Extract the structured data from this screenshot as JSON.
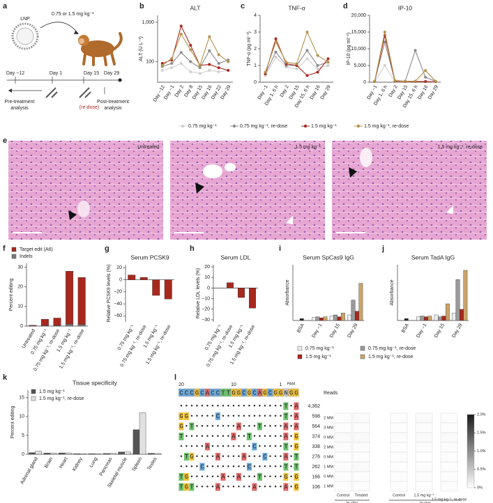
{
  "panel_labels": [
    "a",
    "b",
    "c",
    "d",
    "e",
    "f",
    "g",
    "h",
    "i",
    "j",
    "k",
    "l"
  ],
  "schematic": {
    "carrier": "LNP",
    "dose": "0.75 or 1.5 mg kg⁻¹",
    "timeline": [
      "Day −12",
      "Day 1",
      "Day 15",
      "Day 29"
    ],
    "redose": "(re-dose)",
    "pre": [
      "Pre-treatment",
      "analysis"
    ],
    "post": [
      "Post-treatment",
      "analysis"
    ]
  },
  "histology": {
    "labels": [
      "Untreated",
      "1.5 mg kg⁻¹",
      "1.5 mg kg⁻¹, re-dose"
    ]
  },
  "chart_data": [
    {
      "type": "line",
      "title": "ALT",
      "ylabel": "ALT (U L⁻¹)",
      "log_y": true,
      "categories": [
        "Day −12",
        "Day −1",
        "Day 2",
        "Day 8",
        "Day 15",
        "Day 16",
        "Day 22",
        "Day 29"
      ],
      "ylim": [
        30,
        1500
      ],
      "yticks": [
        100,
        {
          "value": 1000,
          "label": "1,000"
        }
      ],
      "series": [
        {
          "name": "0.75 mg kg⁻¹",
          "color": "#cfcfcf",
          "values": [
            60,
            70,
            90,
            55,
            50,
            60,
            55,
            60
          ]
        },
        {
          "name": "0.75 mg kg⁻¹, re-dose",
          "color": "#8a8a8a",
          "values": [
            75,
            90,
            170,
            100,
            70,
            190,
            90,
            110
          ]
        },
        {
          "name": "1.5 mg kg⁻¹",
          "color": "#a8281e",
          "values": [
            90,
            110,
            800,
            260,
            80,
            85,
            70,
            60
          ]
        },
        {
          "name": "1.5 mg kg⁻¹, re-dose",
          "color": "#b5924c",
          "values": [
            80,
            120,
            500,
            200,
            80,
            430,
            150,
            100
          ]
        }
      ]
    },
    {
      "type": "line",
      "title": "TNF-α",
      "ylabel": "TNF-α (pg ml⁻¹)",
      "categories": [
        "Day −1",
        "Day 1, 6 h",
        "Day 2",
        "Day 15",
        "Day 15, 6 h",
        "Day 16",
        "Day 29"
      ],
      "ylim": [
        0,
        4
      ],
      "yticks": [
        0,
        1,
        2,
        3,
        4
      ],
      "series": [
        {
          "name": "0.75 mg kg⁻¹",
          "color": "#cfcfcf",
          "values": [
            0.4,
            1.5,
            0.9,
            0.8,
            1.4,
            0.8,
            1.0
          ]
        },
        {
          "name": "0.75 mg kg⁻¹, re-dose",
          "color": "#8a8a8a",
          "values": [
            0.5,
            1.8,
            1.0,
            1.0,
            1.9,
            1.0,
            1.2
          ]
        },
        {
          "name": "1.5 mg kg⁻¹",
          "color": "#a8281e",
          "values": [
            0.5,
            2.6,
            1.1,
            1.0,
            0.4,
            0.6,
            1.4
          ]
        },
        {
          "name": "1.5 mg kg⁻¹, re-dose",
          "color": "#b5924c",
          "values": [
            0.6,
            2.4,
            1.2,
            1.1,
            3.0,
            1.6,
            1.2
          ]
        }
      ]
    },
    {
      "type": "line",
      "title": "IP-10",
      "ylabel": "IP-10 (pg ml⁻¹)",
      "categories": [
        "Day −1",
        "Day 1, 6 h",
        "Day 2",
        "Day 15",
        "Day 15, 6 h",
        "Day 16",
        "Day 29"
      ],
      "ylim": [
        0,
        20000
      ],
      "yticks": [
        0,
        {
          "value": 5000,
          "label": "5,000"
        },
        {
          "value": 10000,
          "label": "10,000"
        },
        {
          "value": 15000,
          "label": "15,000"
        },
        {
          "value": 20000,
          "label": "20,000"
        }
      ],
      "series": [
        {
          "name": "0.75 mg kg⁻¹",
          "color": "#cfcfcf",
          "values": [
            200,
            5000,
            200,
            100,
            300,
            200,
            100
          ]
        },
        {
          "name": "0.75 mg kg⁻¹, re-dose",
          "color": "#8a8a8a",
          "values": [
            300,
            12000,
            300,
            200,
            9500,
            1500,
            300
          ]
        },
        {
          "name": "1.5 mg kg⁻¹",
          "color": "#a8281e",
          "values": [
            200,
            14000,
            300,
            200,
            200,
            200,
            200
          ]
        },
        {
          "name": "1.5 mg kg⁻¹, re-dose",
          "color": "#b5924c",
          "values": [
            300,
            15000,
            500,
            300,
            300,
            3500,
            300
          ]
        }
      ]
    },
    {
      "type": "bar",
      "stacked": true,
      "ylabel": "Percent editing",
      "categories": [
        "Untreated",
        "0.75 mg kg⁻¹",
        "0.75 mg kg⁻¹, re-dose",
        "1.5 mg kg⁻¹",
        "1.5 mg kg⁻¹, re-dose"
      ],
      "ylim": [
        0,
        32
      ],
      "yticks": [
        0,
        10,
        20,
        30
      ],
      "series": [
        {
          "name": "Indels",
          "color": "#7a7a7a",
          "values": [
            0.1,
            0.3,
            0.3,
            1.0,
            0.8
          ]
        },
        {
          "name": "Target edit (A6)",
          "color": "#a8281e",
          "values": [
            0.3,
            3.2,
            3.8,
            27,
            24
          ]
        }
      ]
    },
    {
      "type": "bar",
      "title": "Serum PCSK9",
      "ylabel": "Relative PCSK9 levels (%)",
      "color": "#a8281e",
      "categories": [
        "0.75 mg kg⁻¹",
        "0.75 mg kg⁻¹, re-dose",
        "1.5 mg kg⁻¹",
        "1.5 mg kg⁻¹, re-dose"
      ],
      "values": [
        8,
        4,
        -26,
        -32
      ],
      "ylim": [
        -70,
        25
      ],
      "yticks": [
        {
          "value": -60,
          "label": "−60"
        },
        {
          "value": -40,
          "label": "−40"
        },
        {
          "value": -20,
          "label": "−20"
        },
        0,
        20
      ]
    },
    {
      "type": "bar",
      "title": "Serum LDL",
      "ylabel": "Relative LDL levels (%)",
      "color": "#a8281e",
      "categories": [
        "0.75 mg kg⁻¹",
        "0.75 mg kg⁻¹, re-dose",
        "1.5 mg kg⁻¹",
        "1.5 mg kg⁻¹, re-dose"
      ],
      "values": [
        0,
        5,
        -9,
        -19
      ],
      "ylim": [
        -32,
        22
      ],
      "yticks": [
        {
          "value": -30,
          "label": "−30"
        },
        {
          "value": -20,
          "label": "−20"
        },
        {
          "value": -10,
          "label": "−10"
        },
        0,
        10,
        20
      ]
    },
    {
      "type": "bar",
      "title": "Serum SpCas9 IgG",
      "ylabel": "Absorbance",
      "categories": [
        "BSA",
        "Day −1",
        "Day 15",
        "Day 29"
      ],
      "ylim": [
        0,
        1.5
      ],
      "control": {
        "color": "#222222",
        "value": 0.05
      },
      "series": [
        {
          "name": "0.75 mg kg⁻¹",
          "color": "#eeeeee",
          "values": [
            null,
            0.08,
            0.12,
            0.15
          ]
        },
        {
          "name": "0.75 mg kg⁻¹, re-dose",
          "color": "#9a9a9a",
          "values": [
            null,
            0.1,
            0.15,
            0.55
          ]
        },
        {
          "name": "1.5 mg kg⁻¹",
          "color": "#a8281e",
          "values": [
            null,
            0.07,
            0.1,
            0.25
          ]
        },
        {
          "name": "1.5 mg kg⁻¹, re-dose",
          "color": "#c9a46a",
          "values": [
            null,
            0.1,
            0.2,
            1.0
          ]
        }
      ]
    },
    {
      "type": "bar",
      "title": "Serum TadA IgG",
      "ylabel": "Absorbance",
      "categories": [
        "BSA",
        "Day −1",
        "Day 15",
        "Day 29"
      ],
      "ylim": [
        0,
        1.5
      ],
      "control": {
        "color": "#222222",
        "value": 0.05
      },
      "series": [
        {
          "name": "0.75 mg kg⁻¹",
          "color": "#eeeeee",
          "values": [
            null,
            0.1,
            0.15,
            0.2
          ]
        },
        {
          "name": "0.75 mg kg⁻¹, re-dose",
          "color": "#9a9a9a",
          "values": [
            null,
            0.12,
            0.1,
            1.1
          ]
        },
        {
          "name": "1.5 mg kg⁻¹",
          "color": "#a8281e",
          "values": [
            null,
            0.1,
            0.12,
            0.3
          ]
        },
        {
          "name": "1.5 mg kg⁻¹, re-dose",
          "color": "#c9a46a",
          "values": [
            null,
            0.12,
            0.45,
            1.35
          ]
        }
      ]
    },
    {
      "type": "bar",
      "title": "Tissue specificity",
      "ylabel": "Percent editing",
      "categories": [
        "Adrenal gland",
        "Brain",
        "Heart",
        "Kidney",
        "Lung",
        "Pancreas",
        "Skeletal muscle",
        "Spleen",
        "Testes"
      ],
      "ylim": [
        0,
        17
      ],
      "yticks": [
        0,
        5,
        10,
        15
      ],
      "series": [
        {
          "name": "1.5 mg kg⁻¹",
          "color": "#555555",
          "values": [
            0.4,
            0.3,
            0.35,
            0.15,
            0.15,
            0.2,
            0.6,
            6.5,
            0.25
          ]
        },
        {
          "name": "1.5 mg kg⁻¹, re-dose",
          "color": "#e0e0e0",
          "values": [
            0.8,
            0.3,
            0.35,
            0.15,
            0.15,
            0.25,
            0.6,
            11,
            0.2
          ]
        }
      ]
    },
    {
      "type": "heatmap",
      "categories": [
        "Control",
        "Treated",
        "Control",
        "1.5 mg kg⁻¹",
        "1.5 mg kg⁻¹, re-dose"
      ],
      "group_labels": [
        "In vitro",
        "In vivo"
      ],
      "rows": [
        "2 MM",
        "3 MM",
        "0 MM",
        "2 MM",
        "0 MM",
        "1 MM",
        "0 MM",
        "1 MM"
      ],
      "values": [
        [
          0.03,
          0.04,
          0.03,
          0.04,
          0.03
        ],
        [
          0.02,
          0.03,
          0.02,
          0.03,
          0.02
        ],
        [
          0.04,
          0.05,
          0.03,
          0.04,
          0.04
        ],
        [
          0.03,
          0.03,
          0.02,
          0.03,
          0.03
        ],
        [
          0.02,
          0.03,
          0.03,
          0.02,
          0.03
        ],
        [
          0.03,
          0.04,
          0.02,
          0.03,
          0.02
        ],
        [
          0.02,
          0.02,
          0.03,
          0.03,
          0.02
        ],
        [
          0.03,
          0.03,
          0.02,
          0.02,
          0.03
        ]
      ],
      "clim": [
        0,
        2
      ],
      "cticks": [
        {
          "value": 0,
          "label": "0%"
        },
        {
          "value": 0.5,
          "label": "0.5%"
        },
        {
          "value": 1,
          "label": "1.0%"
        },
        {
          "value": 1.5,
          "label": "1.5%"
        },
        {
          "value": 2,
          "label": "2.0%"
        }
      ]
    }
  ],
  "sequence": {
    "position_labels": [
      "20",
      "10",
      "1"
    ],
    "pam_label": "PAM",
    "protospacer": "CCCGCACCTTGGCGCAGCGGNGG",
    "reads_header": "Reads",
    "rows": [
      {
        "seq": "••••••••••••••••••••T•A",
        "reads": {
          "value": 4362,
          "label": "4,362"
        }
      },
      {
        "seq": "GG•••••C••••••••••••T•A",
        "reads": 598
      },
      {
        "seq": "G•T••••••••A•••T••••A•A",
        "reads": 564
      },
      {
        "seq": "T•••••••••A••T••••••A•G",
        "reads": 374
      },
      {
        "seq": "•••••A••••••••C•••••T•G",
        "reads": 338
      },
      {
        "seq": "•TG••••A••••A•••C•••A•T",
        "reads": 276
      },
      {
        "seq": "••••C••••••••C••••••T•T",
        "reads": 262
      },
      {
        "seq": "TG••••••A••A•••T••••G•G",
        "reads": 166
      },
      {
        "seq": "TGT••••A••••••A•••••A•G",
        "reads": 106
      }
    ]
  }
}
